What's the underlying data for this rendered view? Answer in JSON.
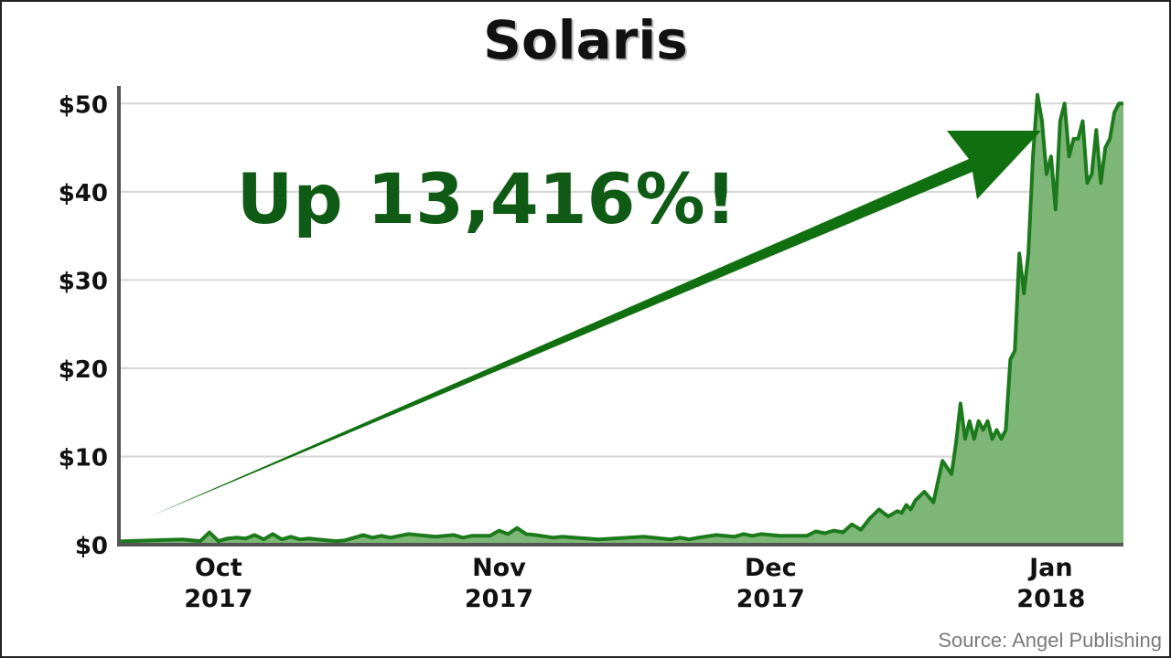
{
  "chart_data": {
    "type": "area",
    "title": "Solaris",
    "annotation": "Up 13,416%!",
    "source": "Source: Angel Publishing",
    "ylim": [
      0,
      52
    ],
    "y_ticks": [
      {
        "value": 0,
        "label": "$0"
      },
      {
        "value": 10,
        "label": "$10"
      },
      {
        "value": 20,
        "label": "$20"
      },
      {
        "value": 30,
        "label": "$30"
      },
      {
        "value": 40,
        "label": "$40"
      },
      {
        "value": 50,
        "label": "$50"
      }
    ],
    "x_ticks": [
      {
        "date": "2017-10-01",
        "line1": "Oct",
        "line2": "2017"
      },
      {
        "date": "2017-11-01",
        "line1": "Nov",
        "line2": "2017"
      },
      {
        "date": "2017-12-01",
        "line1": "Dec",
        "line2": "2017"
      },
      {
        "date": "2018-01-01",
        "line1": "Jan",
        "line2": "2018"
      }
    ],
    "xlim": [
      "2017-09-20",
      "2018-01-09"
    ],
    "grid": true,
    "colors": {
      "line": "#1c7a1c",
      "fill": "#7db676",
      "arrow": "#107010",
      "annotation": "#0f5a14",
      "grid": "#d6d6d6",
      "axis": "#555555"
    },
    "series": [
      {
        "x": [
          "2017-09-20",
          "2017-09-27",
          "2017-09-29",
          "2017-09-30",
          "2017-10-01",
          "2017-10-02",
          "2017-10-03",
          "2017-10-04",
          "2017-10-05",
          "2017-10-06",
          "2017-10-07",
          "2017-10-08",
          "2017-10-09",
          "2017-10-10",
          "2017-10-11",
          "2017-10-13",
          "2017-10-14",
          "2017-10-15",
          "2017-10-17",
          "2017-10-18",
          "2017-10-19",
          "2017-10-20",
          "2017-10-21",
          "2017-10-22",
          "2017-10-23",
          "2017-10-25",
          "2017-10-27",
          "2017-10-28",
          "2017-10-29",
          "2017-10-31",
          "2017-11-01",
          "2017-11-02",
          "2017-11-03",
          "2017-11-04",
          "2017-11-05",
          "2017-11-07",
          "2017-11-08",
          "2017-11-12",
          "2017-11-17",
          "2017-11-20",
          "2017-11-21",
          "2017-11-22",
          "2017-11-23",
          "2017-11-25",
          "2017-11-27",
          "2017-11-28",
          "2017-11-29",
          "2017-11-30",
          "2017-12-02",
          "2017-12-04",
          "2017-12-05",
          "2017-12-06",
          "2017-12-07",
          "2017-12-08",
          "2017-12-09",
          "2017-12-10",
          "2017-12-11",
          "2017-12-12",
          "2017-12-13",
          "2017-12-14",
          "2017-12-15",
          "2017-12-15T12:00",
          "2017-12-16",
          "2017-12-16T12:00",
          "2017-12-17",
          "2017-12-18",
          "2017-12-19",
          "2017-12-20",
          "2017-12-21",
          "2017-12-21T12:00",
          "2017-12-22",
          "2017-12-22T12:00",
          "2017-12-23",
          "2017-12-23T12:00",
          "2017-12-24",
          "2017-12-24T12:00",
          "2017-12-25",
          "2017-12-25T12:00",
          "2017-12-26",
          "2017-12-26T12:00",
          "2017-12-27",
          "2017-12-27T12:00",
          "2017-12-28",
          "2017-12-28T12:00",
          "2017-12-29",
          "2017-12-29T12:00",
          "2017-12-30",
          "2017-12-30T12:00",
          "2017-12-31",
          "2017-12-31T12:00",
          "2018-01-01",
          "2018-01-01T12:00",
          "2018-01-02",
          "2018-01-02T12:00",
          "2018-01-03",
          "2018-01-03T12:00",
          "2018-01-04",
          "2018-01-04T12:00",
          "2018-01-05",
          "2018-01-05T12:00",
          "2018-01-06",
          "2018-01-06T12:00",
          "2018-01-07",
          "2018-01-07T12:00",
          "2018-01-08",
          "2018-01-08T12:00",
          "2018-01-09"
        ],
        "values": [
          0.37,
          0.6,
          0.4,
          1.4,
          0.4,
          0.7,
          0.8,
          0.7,
          1.1,
          0.6,
          1.2,
          0.6,
          0.9,
          0.6,
          0.7,
          0.5,
          0.4,
          0.5,
          1.1,
          0.8,
          1.0,
          0.8,
          1.0,
          1.2,
          1.1,
          0.9,
          1.1,
          0.8,
          1.0,
          1.0,
          1.6,
          1.2,
          1.9,
          1.2,
          1.1,
          0.8,
          0.9,
          0.6,
          0.9,
          0.6,
          0.8,
          0.6,
          0.8,
          1.1,
          0.9,
          1.2,
          1.0,
          1.2,
          1.0,
          1.0,
          1.0,
          1.5,
          1.3,
          1.6,
          1.4,
          2.3,
          1.7,
          3.0,
          4.0,
          3.2,
          3.8,
          3.6,
          4.5,
          4.0,
          5.0,
          6.0,
          4.8,
          9.5,
          8.0,
          11.5,
          16.0,
          12.0,
          14.0,
          12.0,
          14.0,
          13.0,
          14.0,
          12.0,
          13.0,
          12.0,
          13.0,
          21.0,
          22.0,
          33.0,
          28.5,
          33.0,
          44.0,
          51.0,
          48.0,
          42.0,
          44.0,
          38.0,
          48.0,
          50.0,
          44.0,
          46.0,
          46.0,
          48.0,
          41.0,
          42.0,
          47.0,
          41.0,
          45.0,
          46.0,
          49.0,
          50.0,
          50.0
        ]
      }
    ]
  }
}
